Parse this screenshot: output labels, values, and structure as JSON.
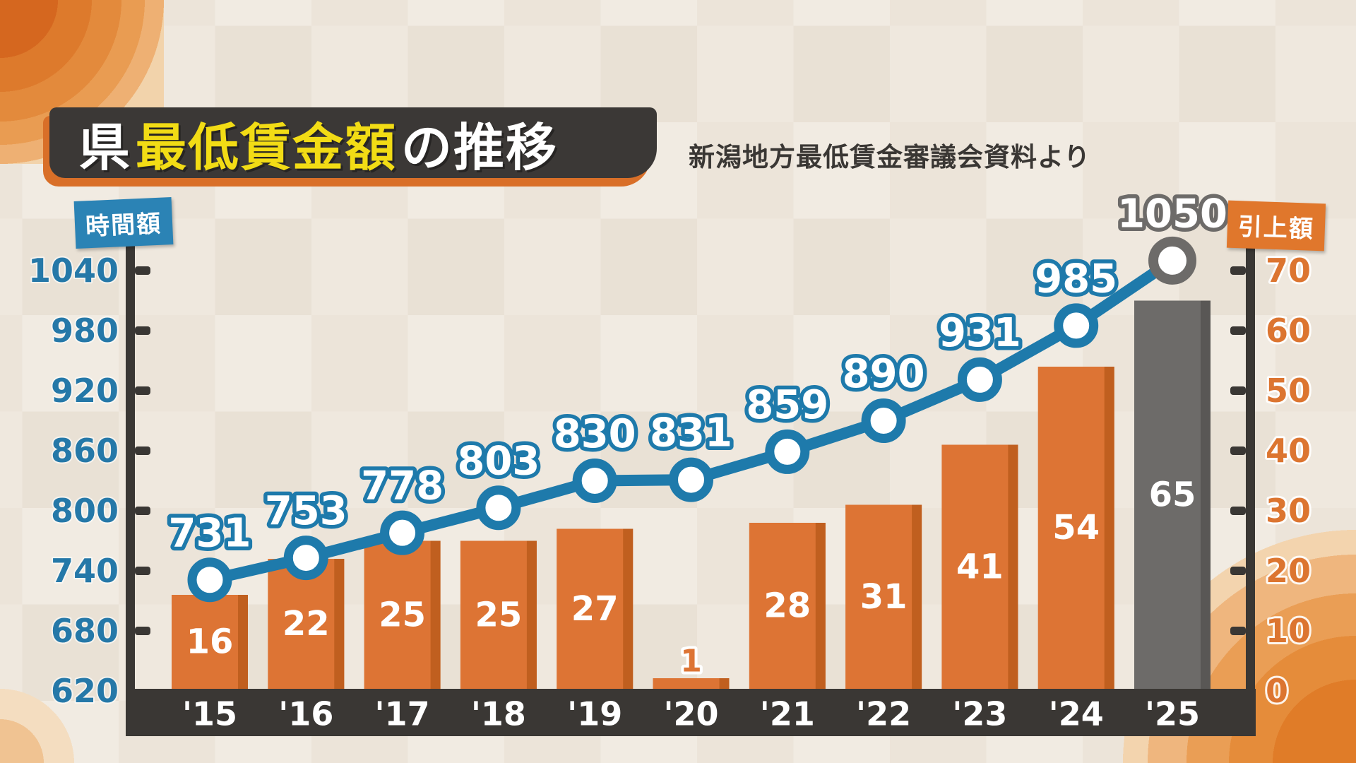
{
  "header": {
    "title_prefix": "県",
    "title_highlight": "最低賃金額",
    "title_suffix": "の推移",
    "source_note": "新潟地方最低賃金審議会資料より"
  },
  "palette": {
    "line_blue": "#1e7aab",
    "axis_blue_text": "#2578a8",
    "bar_orange": "#dd7434",
    "bar_orange_edge": "#c05f1f",
    "axis_orange_text": "#dc7530",
    "gray": "#6d6b69",
    "gray_edge": "#595755",
    "dark": "#3a3734",
    "title_yellow": "#f2dc15",
    "badge_blue": "#2b83b5",
    "badge_orange": "#e0772c",
    "accent_orange": "#d96f28",
    "white": "#ffffff"
  },
  "chart_data": {
    "type": "bar+line combo",
    "categories": [
      "'15",
      "'16",
      "'17",
      "'18",
      "'19",
      "'20",
      "'21",
      "'22",
      "'23",
      "'24",
      "'25"
    ],
    "series": [
      {
        "name": "時間額",
        "type": "line",
        "values": [
          731,
          753,
          778,
          803,
          830,
          831,
          859,
          890,
          931,
          985,
          1050
        ],
        "axis": "left",
        "highlight_last_point": true
      },
      {
        "name": "引上額",
        "type": "bar",
        "values": [
          16,
          22,
          25,
          25,
          27,
          1,
          28,
          31,
          41,
          54,
          65
        ],
        "axis": "right",
        "highlight_last_bar": true
      }
    ],
    "left_axis": {
      "label": "時間額",
      "min": 620,
      "max": 1040,
      "step": 60,
      "ticks": [
        1040,
        980,
        920,
        860,
        800,
        740,
        680,
        620
      ]
    },
    "right_axis": {
      "label": "引上額",
      "min": 0,
      "max": 70,
      "step": 10,
      "ticks": [
        70,
        60,
        50,
        40,
        30,
        20,
        10,
        0
      ]
    },
    "grid": "off",
    "legend": "axis badges top-left and top-right"
  }
}
